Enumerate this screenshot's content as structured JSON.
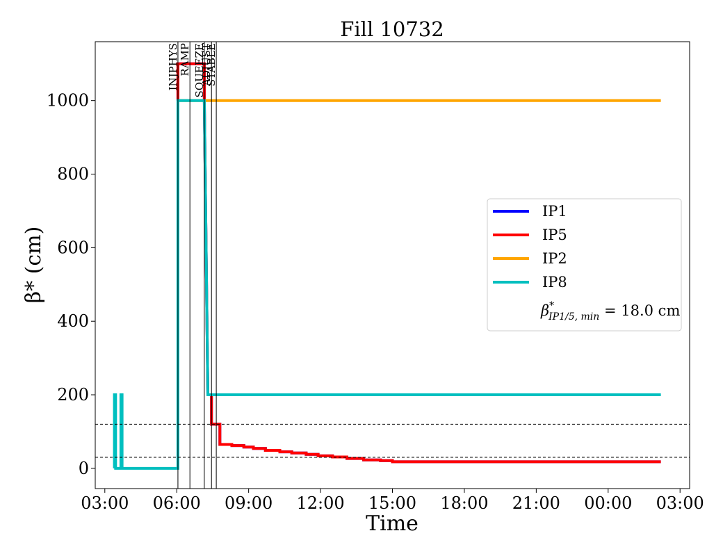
{
  "chart_data": {
    "type": "line",
    "title": "Fill 10732",
    "xlabel": "Time",
    "ylabel": "β* (cm)",
    "x_unit": "hours since 00:00 of the first day (values above 24 fall on the next day)",
    "xlim": [
      2.6,
      27.4
    ],
    "ylim": [
      -55,
      1160
    ],
    "xticks": [
      {
        "value": 3,
        "label": "03:00"
      },
      {
        "value": 6,
        "label": "06:00"
      },
      {
        "value": 9,
        "label": "09:00"
      },
      {
        "value": 12,
        "label": "12:00"
      },
      {
        "value": 15,
        "label": "15:00"
      },
      {
        "value": 18,
        "label": "18:00"
      },
      {
        "value": 21,
        "label": "21:00"
      },
      {
        "value": 24,
        "label": "00:00"
      },
      {
        "value": 27,
        "label": "03:00"
      }
    ],
    "yticks": [
      0,
      200,
      400,
      600,
      800,
      1000
    ],
    "grid": false,
    "legend_position": "center-right",
    "phases": [
      {
        "label": "INJPHYS",
        "x": 6.05
      },
      {
        "label": "RAMP",
        "x": 6.55
      },
      {
        "label": "SQUEEZE",
        "x": 7.15
      },
      {
        "label": "ADJUST",
        "x": 7.45
      },
      {
        "label": "STABLE",
        "x": 7.65
      }
    ],
    "hlines": [
      {
        "y": 120,
        "style": "dashed",
        "color": "#000000"
      },
      {
        "y": 30,
        "style": "dashed",
        "color": "#000000"
      }
    ],
    "series": [
      {
        "name": "IP1",
        "color": "#0000ff",
        "x": [
          6.05,
          6.05,
          7.15,
          7.15,
          7.3,
          7.45,
          7.45,
          7.8,
          7.8,
          8.3,
          8.3,
          8.8,
          8.8,
          9.2,
          9.2,
          9.7,
          9.7,
          10.3,
          10.3,
          10.8,
          10.8,
          11.4,
          11.4,
          11.9,
          11.9,
          12.5,
          12.5,
          13.1,
          13.1,
          13.8,
          13.8,
          14.5,
          14.5,
          15.0,
          15.0,
          26.2
        ],
        "y": [
          1000,
          1100,
          1100,
          1000,
          200,
          200,
          120,
          120,
          65,
          65,
          62,
          62,
          58,
          58,
          54,
          54,
          49,
          49,
          45,
          45,
          42,
          42,
          38,
          38,
          34,
          34,
          31,
          31,
          27,
          27,
          23,
          23,
          21,
          21,
          18,
          18
        ]
      },
      {
        "name": "IP5",
        "color": "#ff0000",
        "x": [
          6.05,
          6.05,
          7.15,
          7.15,
          7.3,
          7.45,
          7.45,
          7.8,
          7.8,
          8.3,
          8.3,
          8.8,
          8.8,
          9.2,
          9.2,
          9.7,
          9.7,
          10.3,
          10.3,
          10.8,
          10.8,
          11.4,
          11.4,
          11.9,
          11.9,
          12.5,
          12.5,
          13.1,
          13.1,
          13.8,
          13.8,
          14.5,
          14.5,
          15.0,
          15.0,
          26.2
        ],
        "y": [
          1000,
          1100,
          1100,
          1000,
          200,
          200,
          120,
          120,
          65,
          65,
          62,
          62,
          58,
          58,
          54,
          54,
          49,
          49,
          45,
          45,
          42,
          42,
          38,
          38,
          34,
          34,
          31,
          31,
          27,
          27,
          23,
          23,
          21,
          21,
          18,
          18
        ]
      },
      {
        "name": "IP2",
        "color": "#ffa500",
        "x": [
          6.05,
          26.2
        ],
        "y": [
          1000,
          1000
        ]
      },
      {
        "name": "IP8",
        "color": "#00bfbf",
        "x": [
          3.4,
          3.4,
          3.45,
          3.45,
          3.67,
          3.67,
          3.72,
          3.72,
          6.05,
          6.05,
          7.15,
          7.3,
          26.2
        ],
        "y": [
          0,
          200,
          200,
          0,
          0,
          200,
          200,
          0,
          0,
          1000,
          1000,
          200,
          200
        ]
      }
    ],
    "legend": {
      "entries": [
        {
          "label": "IP1",
          "color": "#0000ff",
          "kind": "line"
        },
        {
          "label": "IP5",
          "color": "#ff0000",
          "kind": "line"
        },
        {
          "label": "IP2",
          "color": "#ffa500",
          "kind": "line"
        },
        {
          "label": "IP8",
          "color": "#00bfbf",
          "kind": "line"
        }
      ],
      "note_symbol": "β",
      "note_sup": "*",
      "note_sub": "IP1/5, min",
      "note_rest": " = 18.0 cm"
    }
  }
}
